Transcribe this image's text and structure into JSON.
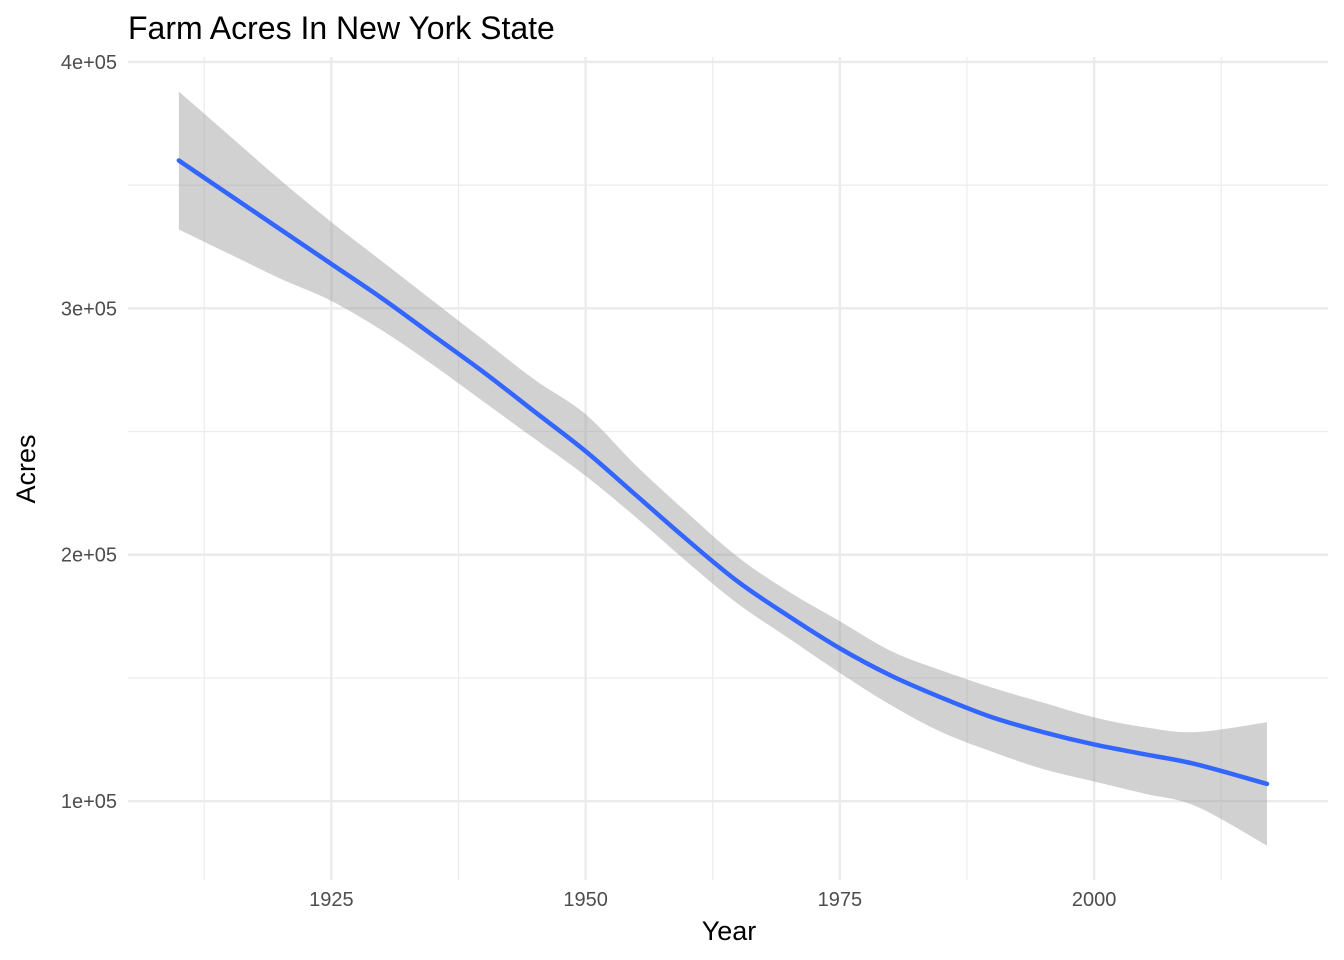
{
  "chart_data": {
    "type": "line",
    "title": "Farm Acres In New York State",
    "xlabel": "Year",
    "ylabel": "Acres",
    "xlim": [
      1905,
      2023
    ],
    "ylim": [
      68000,
      402000
    ],
    "x_major_ticks": [
      1925,
      1950,
      1975,
      2000
    ],
    "x_minor_ticks": [
      1912.5,
      1937.5,
      1962.5,
      1987.5,
      2012.5
    ],
    "y_major_ticks": [
      100000,
      200000,
      300000,
      400000
    ],
    "y_minor_ticks": [
      150000,
      250000,
      350000
    ],
    "y_tick_labels": [
      "1e+05",
      "2e+05",
      "3e+05",
      "4e+05"
    ],
    "x_tick_labels": [
      "1925",
      "1950",
      "1975",
      "2000"
    ],
    "grid": true,
    "legend": "none",
    "colors": {
      "line": "#3366ff",
      "ribbon": "#999999",
      "grid": "#ebebeb"
    },
    "series": [
      {
        "x": [
          1910,
          1915,
          1920,
          1925,
          1930,
          1935,
          1940,
          1945,
          1950,
          1955,
          1960,
          1965,
          1970,
          1975,
          1980,
          1985,
          1990,
          1995,
          2000,
          2005,
          2010,
          2017
        ],
        "values": [
          360000,
          346000,
          332000,
          318000,
          304000,
          289000,
          274000,
          258000,
          242000,
          224000,
          206000,
          189000,
          175000,
          162000,
          151000,
          142000,
          134000,
          128000,
          123000,
          119000,
          115000,
          107000
        ],
        "lower": [
          332000,
          322000,
          312000,
          303000,
          291000,
          277000,
          262000,
          247000,
          232000,
          215000,
          197000,
          180000,
          166000,
          152000,
          139000,
          128000,
          120000,
          113000,
          108000,
          103000,
          98000,
          82000
        ],
        "upper": [
          388000,
          370000,
          352000,
          335000,
          319000,
          303000,
          287000,
          271000,
          257000,
          236000,
          217000,
          199000,
          185000,
          173000,
          161000,
          153000,
          146000,
          140000,
          134000,
          130000,
          128000,
          132000
        ]
      }
    ]
  }
}
